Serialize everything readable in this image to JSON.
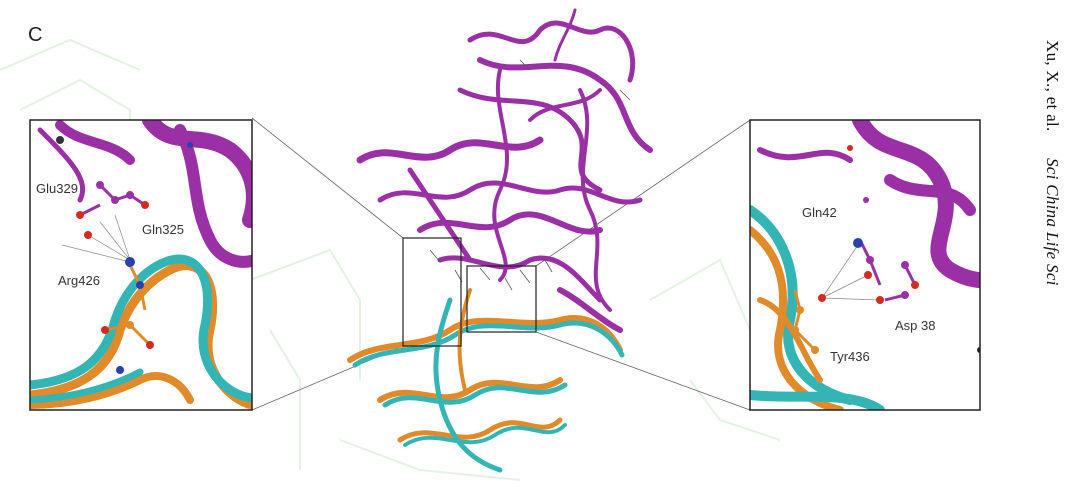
{
  "figure": {
    "panel_label": "C",
    "citation": {
      "authors": "Xu, X., et al.",
      "journal": "Sci China Life Sci"
    },
    "colors": {
      "ace2": "#9b30a6",
      "rbd_teal": "#33b5b5",
      "rbd_orange": "#e08a2a",
      "oxygen": "#d42b1f",
      "nitrogen": "#2c3fae",
      "box_border": "#222222"
    },
    "left_inset": {
      "residues": [
        "Glu329",
        "Gln325",
        "Arg426"
      ]
    },
    "right_inset": {
      "residues": [
        "Gln42",
        "Asp 38",
        "Tyr436"
      ]
    }
  }
}
